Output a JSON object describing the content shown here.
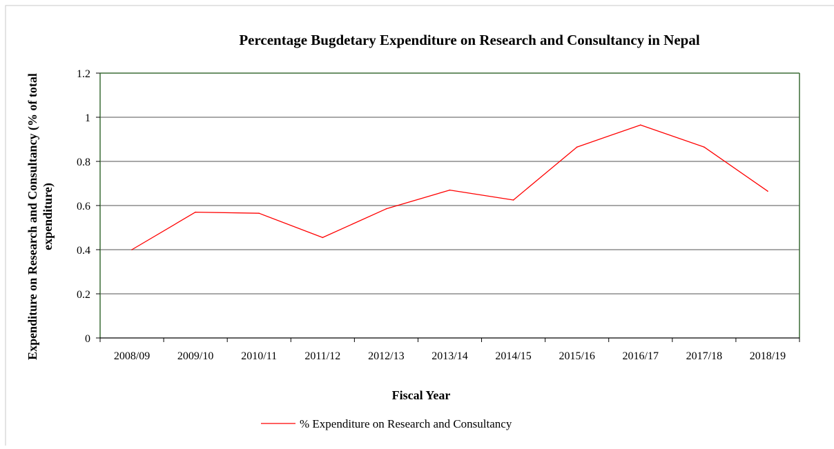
{
  "chart_data": {
    "type": "line",
    "title": "Percentage Bugdetary Expenditure on Research and Consultancy in Nepal",
    "xlabel": "Fiscal Year",
    "ylabel_line1": "Expenditure on Research and Consultancy (% of total",
    "ylabel_line2": "expenditure)",
    "categories": [
      "2008/09",
      "2009/10",
      "2010/11",
      "2011/12",
      "2012/13",
      "2013/14",
      "2014/15",
      "2015/16",
      "2016/17",
      "2017/18",
      "2018/19"
    ],
    "y_ticks": [
      "0",
      "0.2",
      "0.4",
      "0.6",
      "0.8",
      "1",
      "1.2"
    ],
    "ylim": [
      0,
      1.2
    ],
    "grid": true,
    "legend_position": "bottom",
    "series": [
      {
        "name": "% Expenditure on Research and Consultancy",
        "color": "#ff0000",
        "values": [
          0.4,
          0.57,
          0.565,
          0.455,
          0.585,
          0.67,
          0.625,
          0.865,
          0.965,
          0.865,
          0.665
        ]
      }
    ],
    "colors": {
      "gridline": "#8c8c8c",
      "plot_border": "#3a6b35",
      "axis": "#000000"
    }
  }
}
